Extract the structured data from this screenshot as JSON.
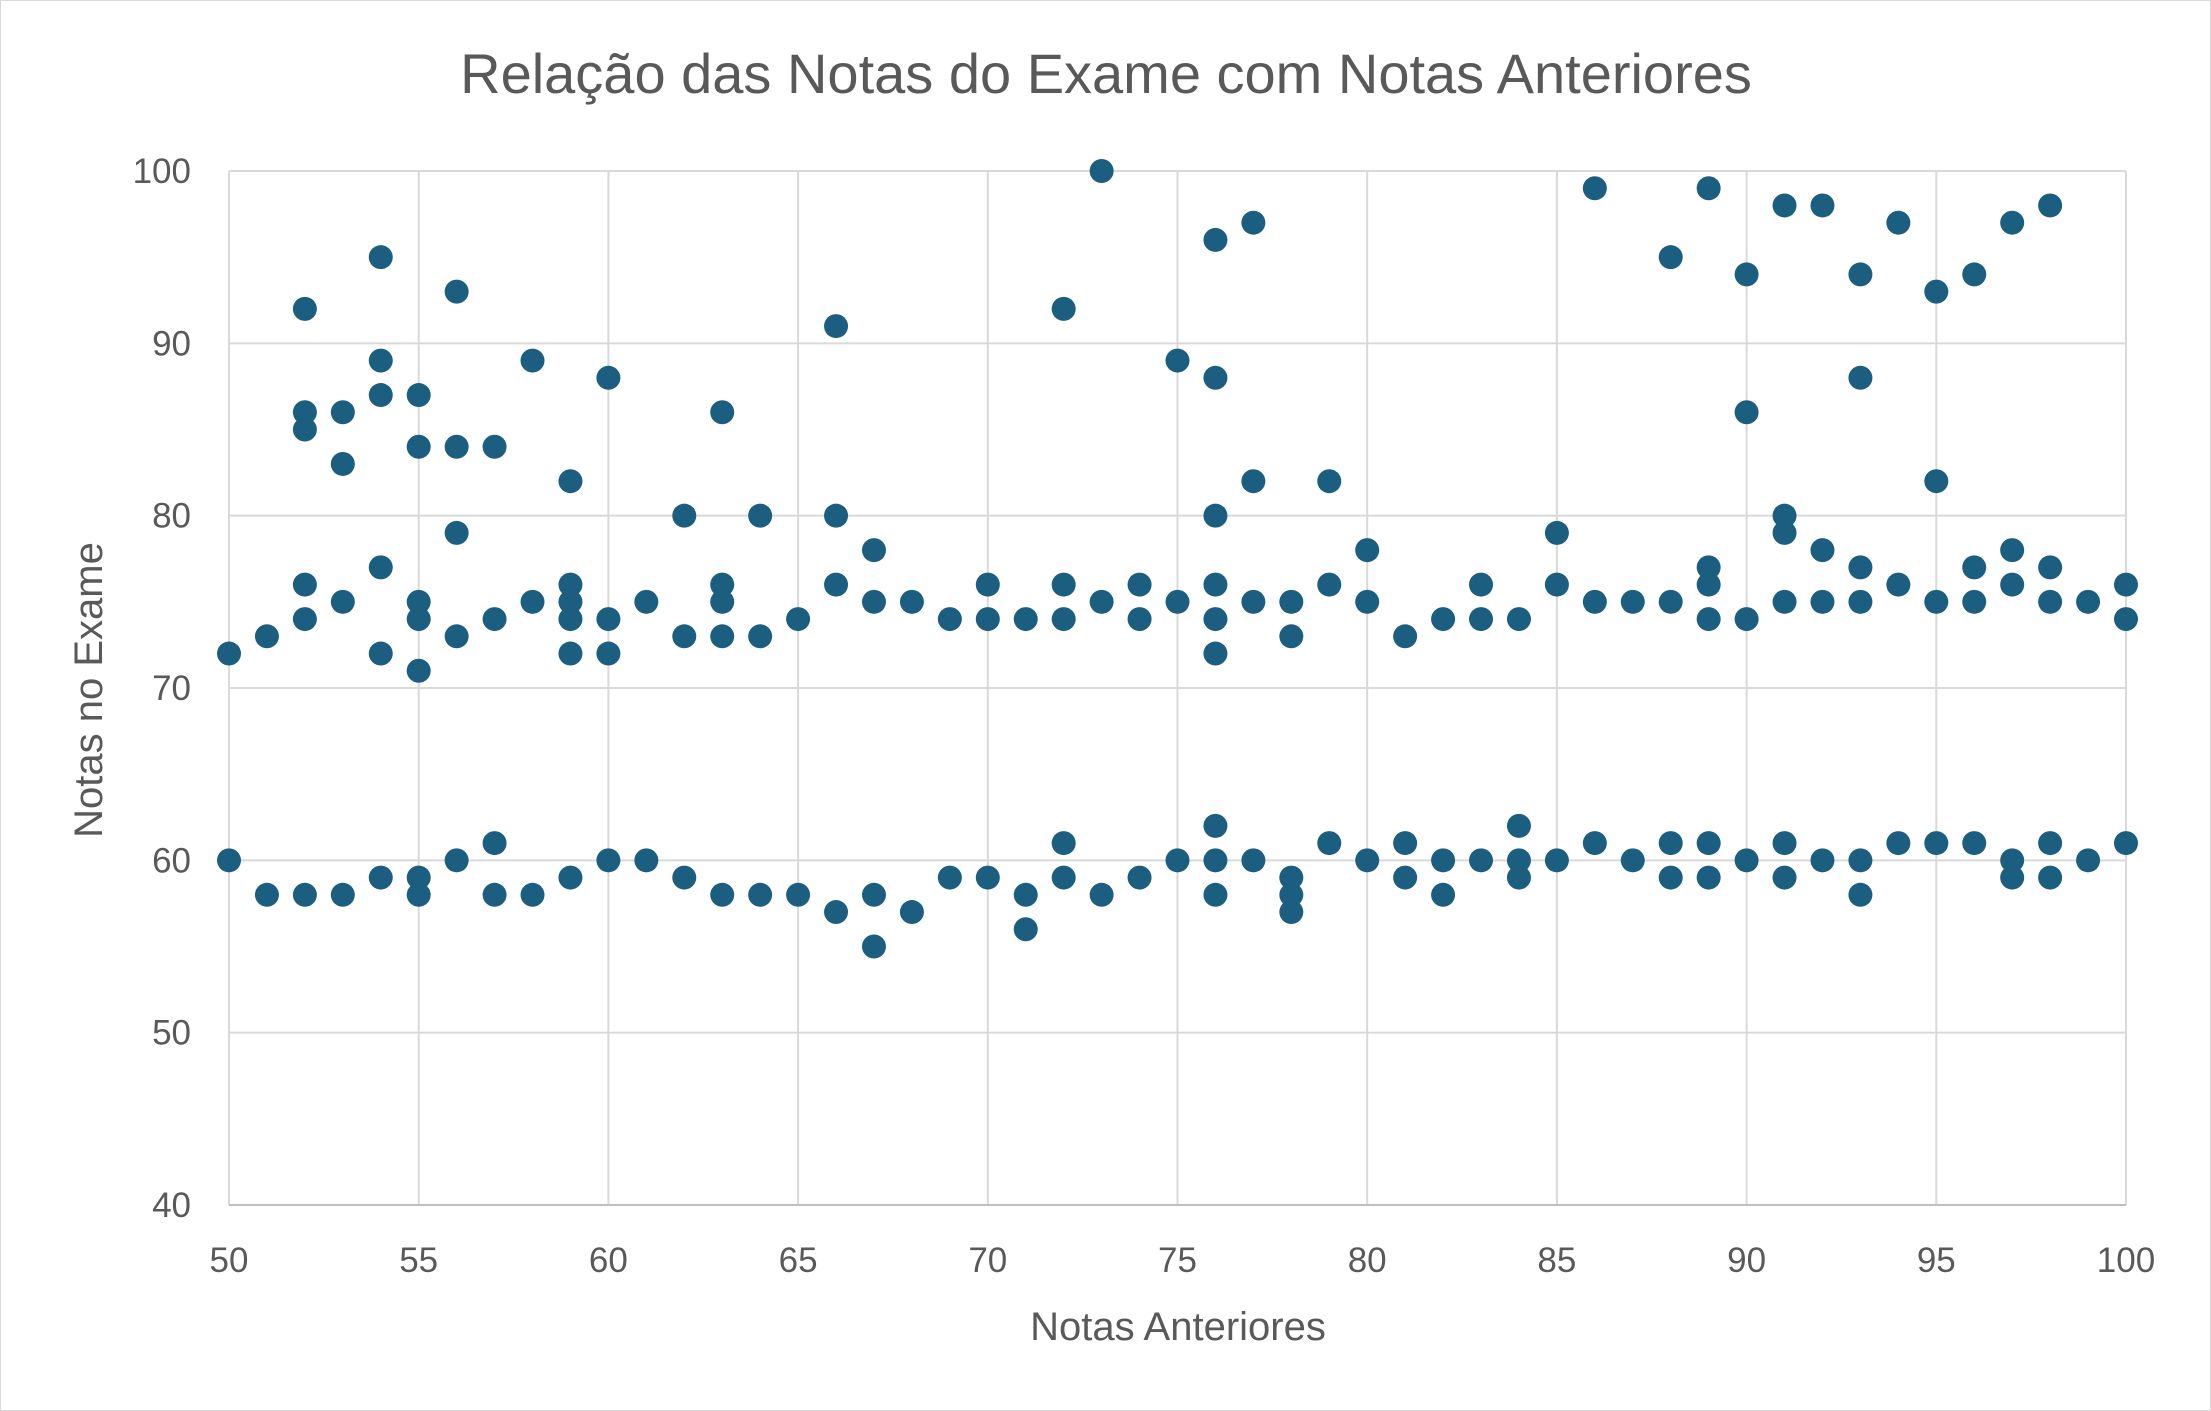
{
  "chart_data": {
    "type": "scatter",
    "title": "Relação das Notas do Exame com Notas Anteriores",
    "xlabel": "Notas Anteriores",
    "ylabel": "Notas no Exame",
    "xlim": [
      50,
      100
    ],
    "ylim": [
      40,
      100
    ],
    "x_ticks": [
      50,
      55,
      60,
      65,
      70,
      75,
      80,
      85,
      90,
      95,
      100
    ],
    "y_ticks": [
      40,
      50,
      60,
      70,
      80,
      90,
      100
    ],
    "grid": true,
    "legend": "none",
    "marker_color": "#1b5e80",
    "series": [
      {
        "points": [
          [
            50,
            60
          ],
          [
            50,
            72
          ],
          [
            51,
            58
          ],
          [
            51,
            73
          ],
          [
            52,
            58
          ],
          [
            52,
            74
          ],
          [
            52,
            76
          ],
          [
            52,
            85
          ],
          [
            52,
            86
          ],
          [
            52,
            92
          ],
          [
            53,
            58
          ],
          [
            53,
            75
          ],
          [
            53,
            83
          ],
          [
            53,
            86
          ],
          [
            54,
            59
          ],
          [
            54,
            72
          ],
          [
            54,
            77
          ],
          [
            54,
            87
          ],
          [
            54,
            89
          ],
          [
            54,
            95
          ],
          [
            55,
            58
          ],
          [
            55,
            59
          ],
          [
            55,
            71
          ],
          [
            55,
            74
          ],
          [
            55,
            75
          ],
          [
            55,
            84
          ],
          [
            55,
            87
          ],
          [
            56,
            60
          ],
          [
            56,
            73
          ],
          [
            56,
            79
          ],
          [
            56,
            84
          ],
          [
            56,
            93
          ],
          [
            57,
            58
          ],
          [
            57,
            61
          ],
          [
            57,
            74
          ],
          [
            57,
            84
          ],
          [
            58,
            58
          ],
          [
            58,
            75
          ],
          [
            58,
            89
          ],
          [
            59,
            59
          ],
          [
            59,
            72
          ],
          [
            59,
            74
          ],
          [
            59,
            75
          ],
          [
            59,
            76
          ],
          [
            59,
            82
          ],
          [
            60,
            60
          ],
          [
            60,
            72
          ],
          [
            60,
            74
          ],
          [
            60,
            88
          ],
          [
            61,
            60
          ],
          [
            61,
            75
          ],
          [
            62,
            59
          ],
          [
            62,
            73
          ],
          [
            62,
            80
          ],
          [
            63,
            58
          ],
          [
            63,
            73
          ],
          [
            63,
            75
          ],
          [
            63,
            76
          ],
          [
            63,
            86
          ],
          [
            64,
            58
          ],
          [
            64,
            73
          ],
          [
            64,
            80
          ],
          [
            65,
            58
          ],
          [
            65,
            74
          ],
          [
            66,
            57
          ],
          [
            66,
            76
          ],
          [
            66,
            80
          ],
          [
            66,
            91
          ],
          [
            67,
            55
          ],
          [
            67,
            58
          ],
          [
            67,
            75
          ],
          [
            67,
            78
          ],
          [
            68,
            57
          ],
          [
            68,
            75
          ],
          [
            69,
            59
          ],
          [
            69,
            74
          ],
          [
            70,
            59
          ],
          [
            70,
            74
          ],
          [
            70,
            76
          ],
          [
            71,
            56
          ],
          [
            71,
            58
          ],
          [
            71,
            74
          ],
          [
            72,
            59
          ],
          [
            72,
            61
          ],
          [
            72,
            74
          ],
          [
            72,
            76
          ],
          [
            72,
            92
          ],
          [
            73,
            58
          ],
          [
            73,
            75
          ],
          [
            73,
            100
          ],
          [
            74,
            59
          ],
          [
            74,
            74
          ],
          [
            74,
            76
          ],
          [
            75,
            60
          ],
          [
            75,
            75
          ],
          [
            75,
            89
          ],
          [
            76,
            58
          ],
          [
            76,
            60
          ],
          [
            76,
            62
          ],
          [
            76,
            72
          ],
          [
            76,
            74
          ],
          [
            76,
            76
          ],
          [
            76,
            80
          ],
          [
            76,
            88
          ],
          [
            76,
            96
          ],
          [
            77,
            60
          ],
          [
            77,
            75
          ],
          [
            77,
            82
          ],
          [
            77,
            97
          ],
          [
            78,
            57
          ],
          [
            78,
            58
          ],
          [
            78,
            59
          ],
          [
            78,
            73
          ],
          [
            78,
            75
          ],
          [
            79,
            61
          ],
          [
            79,
            76
          ],
          [
            79,
            82
          ],
          [
            80,
            60
          ],
          [
            80,
            75
          ],
          [
            80,
            78
          ],
          [
            81,
            59
          ],
          [
            81,
            61
          ],
          [
            81,
            73
          ],
          [
            82,
            58
          ],
          [
            82,
            60
          ],
          [
            82,
            74
          ],
          [
            83,
            60
          ],
          [
            83,
            74
          ],
          [
            83,
            76
          ],
          [
            84,
            59
          ],
          [
            84,
            60
          ],
          [
            84,
            62
          ],
          [
            84,
            74
          ],
          [
            85,
            60
          ],
          [
            85,
            76
          ],
          [
            85,
            79
          ],
          [
            86,
            61
          ],
          [
            86,
            75
          ],
          [
            86,
            99
          ],
          [
            87,
            60
          ],
          [
            87,
            75
          ],
          [
            88,
            59
          ],
          [
            88,
            61
          ],
          [
            88,
            75
          ],
          [
            88,
            95
          ],
          [
            89,
            59
          ],
          [
            89,
            61
          ],
          [
            89,
            74
          ],
          [
            89,
            76
          ],
          [
            89,
            77
          ],
          [
            89,
            99
          ],
          [
            90,
            60
          ],
          [
            90,
            74
          ],
          [
            90,
            86
          ],
          [
            90,
            94
          ],
          [
            91,
            59
          ],
          [
            91,
            61
          ],
          [
            91,
            75
          ],
          [
            91,
            79
          ],
          [
            91,
            80
          ],
          [
            91,
            98
          ],
          [
            92,
            60
          ],
          [
            92,
            75
          ],
          [
            92,
            78
          ],
          [
            92,
            98
          ],
          [
            93,
            58
          ],
          [
            93,
            60
          ],
          [
            93,
            75
          ],
          [
            93,
            77
          ],
          [
            93,
            88
          ],
          [
            93,
            94
          ],
          [
            94,
            61
          ],
          [
            94,
            76
          ],
          [
            94,
            97
          ],
          [
            95,
            61
          ],
          [
            95,
            75
          ],
          [
            95,
            82
          ],
          [
            95,
            93
          ],
          [
            96,
            61
          ],
          [
            96,
            75
          ],
          [
            96,
            77
          ],
          [
            96,
            94
          ],
          [
            97,
            59
          ],
          [
            97,
            60
          ],
          [
            97,
            76
          ],
          [
            97,
            78
          ],
          [
            97,
            97
          ],
          [
            98,
            59
          ],
          [
            98,
            61
          ],
          [
            98,
            75
          ],
          [
            98,
            77
          ],
          [
            98,
            98
          ],
          [
            99,
            60
          ],
          [
            99,
            75
          ],
          [
            100,
            61
          ],
          [
            100,
            74
          ],
          [
            100,
            76
          ]
        ]
      }
    ]
  }
}
